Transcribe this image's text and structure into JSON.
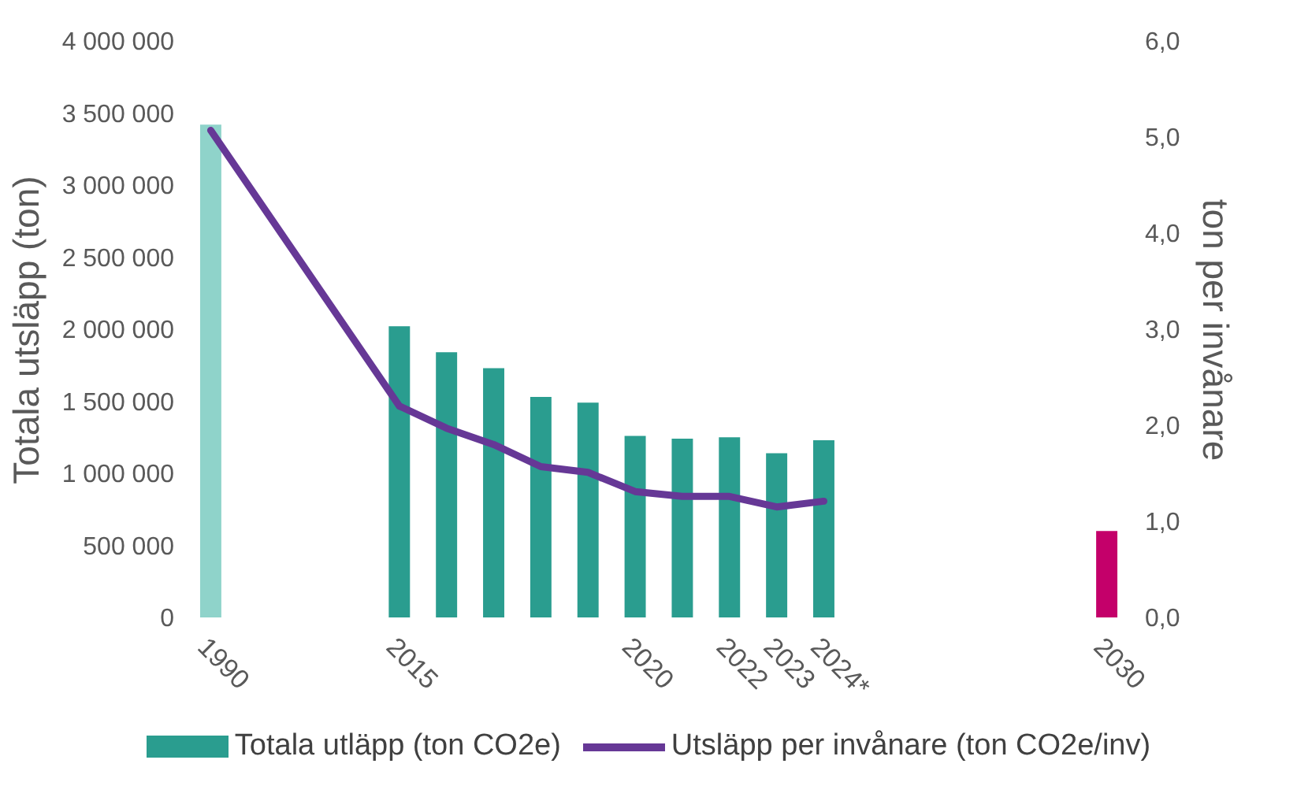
{
  "chart_data": {
    "type": "bar",
    "categories": [
      "1990",
      null,
      null,
      null,
      "2015",
      null,
      null,
      null,
      null,
      "2020",
      null,
      "2022",
      "2023",
      "2024*",
      null,
      null,
      null,
      null,
      null,
      "2030"
    ],
    "series": [
      {
        "name": "Totala utläpp (ton CO2e)",
        "color": "#2a9d8f",
        "colors": [
          "#8fd3ca",
          null,
          null,
          null,
          "#2a9d8f",
          "#2a9d8f",
          "#2a9d8f",
          "#2a9d8f",
          "#2a9d8f",
          "#2a9d8f",
          "#2a9d8f",
          "#2a9d8f",
          "#2a9d8f",
          "#2a9d8f",
          null,
          null,
          null,
          null,
          null,
          "#c4006a"
        ],
        "values": [
          3420000,
          null,
          null,
          null,
          2020000,
          1840000,
          1730000,
          1530000,
          1490000,
          1260000,
          1240000,
          1250000,
          1140000,
          1230000,
          null,
          null,
          null,
          null,
          null,
          600000
        ]
      },
      {
        "name": "Utsläpp per invånare (ton CO2e/inv)",
        "type": "line",
        "axis": "y2",
        "color": "#663896",
        "values": [
          5.07,
          null,
          null,
          null,
          2.2,
          1.97,
          1.8,
          1.57,
          1.51,
          1.31,
          1.26,
          1.26,
          1.15,
          1.21,
          null,
          null,
          null,
          null,
          null,
          null
        ]
      }
    ],
    "ylabel": "Totala utsläpp (ton)",
    "y2label": "ton per invånare",
    "ylim": [
      0,
      4000000
    ],
    "yticks": [
      0,
      {
        "value": 500000,
        "label": "500 000"
      },
      {
        "value": 1000000,
        "label": "1 000 000"
      },
      {
        "value": 1500000,
        "label": "1 500 000"
      },
      {
        "value": 2000000,
        "label": "2 000 000"
      },
      {
        "value": 2500000,
        "label": "2 500 000"
      },
      {
        "value": 3000000,
        "label": "3 000 000"
      },
      {
        "value": 3500000,
        "label": "3 500 000"
      },
      {
        "value": 4000000,
        "label": "4 000 000"
      }
    ],
    "y2lim": [
      0,
      6
    ],
    "y2ticks": [
      {
        "value": 0,
        "label": "0,0"
      },
      {
        "value": 1,
        "label": "1,0"
      },
      {
        "value": 2,
        "label": "2,0"
      },
      {
        "value": 3,
        "label": "3,0"
      },
      {
        "value": 4,
        "label": "4,0"
      },
      {
        "value": 5,
        "label": "5,0"
      },
      {
        "value": 6,
        "label": "6,0"
      }
    ],
    "legend": "bottom",
    "grid": false,
    "line_style": "solid",
    "marker": "none"
  }
}
